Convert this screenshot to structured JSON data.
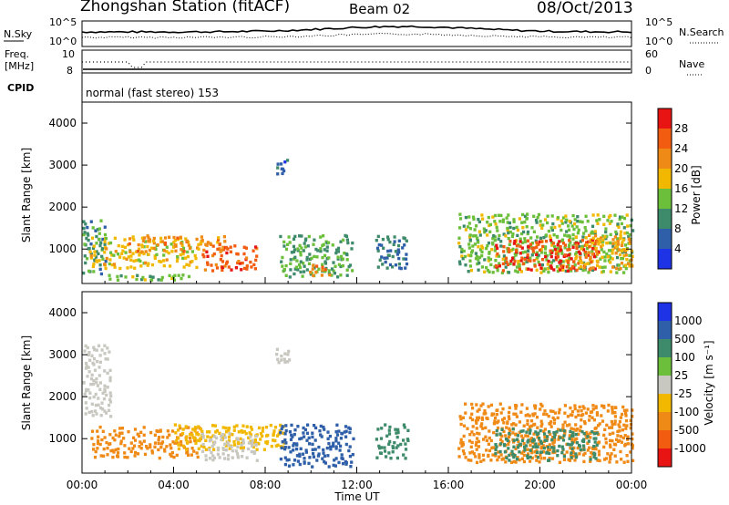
{
  "header": {
    "station": "Zhongshan Station (fitACF)",
    "beam": "Beam 02",
    "date": "08/Oct/2013"
  },
  "top_panels": {
    "nsky_label": "N.Sky",
    "nsky_ticks": [
      "10^5",
      "10^0"
    ],
    "nsearch_label": "N.Search",
    "nsearch_ticks": [
      "10^5",
      "10^0"
    ],
    "freq_label_1": "Freq.",
    "freq_label_2": "[MHz]",
    "freq_ticks": [
      "10",
      "8"
    ],
    "nave_label": "Nave",
    "nave_ticks": [
      "60",
      "0"
    ],
    "cpid_label": "CPID",
    "cpid_text": "normal (fast stereo) 153"
  },
  "colors": {
    "power": [
      "#1f33e6",
      "#2e5fa8",
      "#3d8b6a",
      "#6cbf3a",
      "#f2b800",
      "#f08a16",
      "#f25c10",
      "#e81414"
    ],
    "velocity": [
      "#e81414",
      "#f25c10",
      "#f08a16",
      "#f2b800",
      "#c8c8c0",
      "#6cbf3a",
      "#3d8b6a",
      "#2e5fa8",
      "#1f33e6"
    ]
  },
  "chart_data": [
    {
      "type": "heatmap",
      "panel": "power",
      "ylabel": "Slant Range [km]",
      "ylim": [
        180,
        4500
      ],
      "yticks": [
        "1000",
        "2000",
        "3000",
        "4000"
      ],
      "xlim": [
        "00:00",
        "24:00"
      ],
      "colorbar_label": "Power [dB]",
      "colorbar_ticks": [
        "4",
        "8",
        "12",
        "16",
        "20",
        "24",
        "28"
      ],
      "clim": [
        0,
        32
      ],
      "blobs": [
        {
          "t0": 0.0,
          "t1": 1.0,
          "r0": 350,
          "r1": 1700,
          "v": 10
        },
        {
          "t0": 0.3,
          "t1": 5.2,
          "r0": 500,
          "r1": 1250,
          "v": 18
        },
        {
          "t0": 2.0,
          "t1": 6.2,
          "r0": 900,
          "r1": 1300,
          "v": 22
        },
        {
          "t0": 5.2,
          "t1": 7.6,
          "r0": 450,
          "r1": 1100,
          "v": 26
        },
        {
          "t0": 1.0,
          "t1": 4.8,
          "r0": 220,
          "r1": 360,
          "v": 14
        },
        {
          "t0": 8.4,
          "t1": 9.0,
          "r0": 2750,
          "r1": 3100,
          "v": 6
        },
        {
          "t0": 8.6,
          "t1": 11.8,
          "r0": 300,
          "r1": 1300,
          "v": 12
        },
        {
          "t0": 9.8,
          "t1": 10.8,
          "r0": 300,
          "r1": 600,
          "v": 24
        },
        {
          "t0": 12.8,
          "t1": 14.2,
          "r0": 500,
          "r1": 1300,
          "v": 8
        },
        {
          "t0": 16.4,
          "t1": 24.0,
          "r0": 400,
          "r1": 1800,
          "v": 14
        },
        {
          "t0": 18.0,
          "t1": 22.5,
          "r0": 450,
          "r1": 1200,
          "v": 28
        },
        {
          "t0": 21.5,
          "t1": 24.0,
          "r0": 500,
          "r1": 1300,
          "v": 20
        }
      ]
    },
    {
      "type": "heatmap",
      "panel": "velocity",
      "ylabel": "Slant Range [km]",
      "xlabel": "Time UT",
      "ylim": [
        180,
        4500
      ],
      "yticks": [
        "1000",
        "2000",
        "3000",
        "4000"
      ],
      "xlim": [
        "00:00",
        "24:00"
      ],
      "xticks": [
        "00:00",
        "04:00",
        "08:00",
        "12:00",
        "16:00",
        "20:00",
        "00:00"
      ],
      "colorbar_label": "Velocity [m s⁻¹]",
      "colorbar_ticks": [
        "1000",
        "500",
        "100",
        "25",
        "-25",
        "-100",
        "-500",
        "-1000"
      ],
      "blobs": [
        {
          "t0": 0.0,
          "t1": 1.2,
          "r0": 1500,
          "r1": 3200,
          "v": 0
        },
        {
          "t0": 0.3,
          "t1": 5.2,
          "r0": 500,
          "r1": 1250,
          "v": -300
        },
        {
          "t0": 4.0,
          "t1": 8.8,
          "r0": 700,
          "r1": 1300,
          "v": -50
        },
        {
          "t0": 5.2,
          "t1": 7.6,
          "r0": 450,
          "r1": 1100,
          "v": 0
        },
        {
          "t0": 8.4,
          "t1": 9.0,
          "r0": 2750,
          "r1": 3100,
          "v": 0
        },
        {
          "t0": 8.6,
          "t1": 11.8,
          "r0": 300,
          "r1": 1300,
          "v": 600
        },
        {
          "t0": 12.8,
          "t1": 14.2,
          "r0": 500,
          "r1": 1300,
          "v": 400
        },
        {
          "t0": 16.4,
          "t1": 24.0,
          "r0": 400,
          "r1": 1800,
          "v": -200
        },
        {
          "t0": 18.0,
          "t1": 22.5,
          "r0": 450,
          "r1": 1200,
          "v": 150
        }
      ]
    }
  ]
}
